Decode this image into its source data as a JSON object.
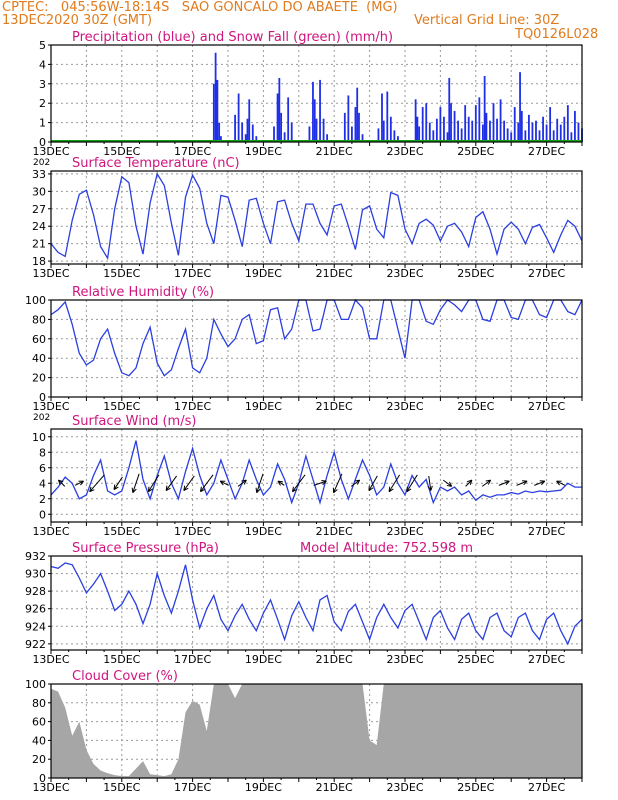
{
  "header": {
    "line1": "CPTEC:   045:56W-18:14S   SAO GONCALO DO ABAETE  (MG)",
    "date": "13DEC2020 30Z (GMT)",
    "grid_note": "Vertical Grid Line: 30Z",
    "code": "TQ0126L028"
  },
  "colors": {
    "header_text": "#e07b1e",
    "title_text": "#d0157e",
    "line": "#2b3fe0",
    "precip": "#1f2fe6",
    "snow": "#14a014",
    "cloud": "#a6a6a6",
    "barb": "#000000"
  },
  "x_tick_labels": [
    "13DEC",
    "15DEC",
    "17DEC",
    "19DEC",
    "21DEC",
    "23DEC",
    "25DEC",
    "27DEC"
  ],
  "stub_label": "202",
  "chart_data": [
    {
      "type": "bar",
      "title": "Precipitation (blue) and Snow Fall (green) (mm/h)",
      "ylim": [
        0,
        5
      ],
      "yticks": [
        0,
        1,
        2,
        3,
        4,
        5
      ],
      "series": [
        {
          "name": "Precipitation",
          "x": [
            4.6,
            4.65,
            4.7,
            4.75,
            4.8,
            5.2,
            5.3,
            5.4,
            5.5,
            5.55,
            5.6,
            5.7,
            5.8,
            6.3,
            6.4,
            6.45,
            6.5,
            6.6,
            6.7,
            6.8,
            7.3,
            7.4,
            7.45,
            7.5,
            7.6,
            7.7,
            7.8,
            8.3,
            8.4,
            8.5,
            8.6,
            8.65,
            8.7,
            8.8,
            9.25,
            9.35,
            9.4,
            9.5,
            9.6,
            9.7,
            9.8,
            10.3,
            10.35,
            10.4,
            10.5,
            10.6,
            10.7,
            10.8,
            10.9,
            11.0,
            11.1,
            11.2,
            11.25,
            11.3,
            11.4,
            11.5,
            11.6,
            11.7,
            11.8,
            11.9,
            12.0,
            12.1,
            12.2,
            12.25,
            12.3,
            12.4,
            12.5,
            12.6,
            12.7,
            12.8,
            12.9,
            13.0,
            13.1,
            13.2,
            13.25,
            13.3,
            13.4,
            13.5,
            13.6,
            13.7,
            13.8,
            13.9,
            14.0,
            14.1,
            14.2,
            14.3,
            14.4,
            14.5,
            14.6,
            14.7,
            14.8,
            14.9,
            15.0
          ],
          "values": [
            3.0,
            4.6,
            3.2,
            1.0,
            0.3,
            1.4,
            2.5,
            1.0,
            0.4,
            1.2,
            2.2,
            0.9,
            0.3,
            0.8,
            2.5,
            3.3,
            1.5,
            0.5,
            2.3,
            1.0,
            0.8,
            3.1,
            2.2,
            1.2,
            3.2,
            1.2,
            0.4,
            1.5,
            2.4,
            0.8,
            1.8,
            2.8,
            1.5,
            0.4,
            0.7,
            2.5,
            1.1,
            2.6,
            1.3,
            0.6,
            0.3,
            2.2,
            1.3,
            0.8,
            1.8,
            2.0,
            1.0,
            0.6,
            1.2,
            1.8,
            1.3,
            0.5,
            3.3,
            2.0,
            1.6,
            1.1,
            0.7,
            1.9,
            1.3,
            1.1,
            1.9,
            2.3,
            0.9,
            3.4,
            1.5,
            1.1,
            2.0,
            1.2,
            2.2,
            1.1,
            0.7,
            0.5,
            1.8,
            1.0,
            3.6,
            1.6,
            0.6,
            1.4,
            1.0,
            1.1,
            0.6,
            1.3,
            0.9,
            1.8,
            0.6,
            1.2,
            0.9,
            1.3,
            1.9,
            0.5,
            1.6,
            1.0,
            0.7
          ]
        },
        {
          "name": "Snow Fall",
          "x": [],
          "values": []
        }
      ]
    },
    {
      "type": "line",
      "title": "Surface Temperature (nC)",
      "ylim": [
        17.5,
        33.5
      ],
      "yticks": [
        18,
        21,
        24,
        27,
        30,
        33
      ],
      "x": [
        0,
        0.2,
        0.4,
        0.6,
        0.8,
        1.0,
        1.2,
        1.4,
        1.6,
        1.8,
        2.0,
        2.2,
        2.4,
        2.6,
        2.8,
        3.0,
        3.2,
        3.4,
        3.6,
        3.8,
        4.0,
        4.2,
        4.4,
        4.6,
        4.8,
        5.0,
        5.2,
        5.4,
        5.6,
        5.8,
        6.0,
        6.2,
        6.4,
        6.6,
        6.8,
        7.0,
        7.2,
        7.4,
        7.6,
        7.8,
        8.0,
        8.2,
        8.4,
        8.6,
        8.8,
        9.0,
        9.2,
        9.4,
        9.6,
        9.8,
        10.0,
        10.2,
        10.4,
        10.6,
        10.8,
        11.0,
        11.2,
        11.4,
        11.6,
        11.8,
        12.0,
        12.2,
        12.4,
        12.6,
        12.8,
        13.0,
        13.2,
        13.4,
        13.6,
        13.8,
        14.0,
        14.2,
        14.4,
        14.6,
        14.8,
        15.0
      ],
      "series": [
        {
          "values": [
            21.0,
            19.5,
            18.8,
            25.0,
            29.5,
            30.2,
            26.0,
            20.5,
            18.5,
            27.0,
            32.5,
            31.5,
            24.0,
            19.2,
            28.0,
            33.0,
            31.0,
            24.5,
            19.0,
            29.0,
            32.8,
            30.5,
            24.5,
            21.0,
            29.3,
            29.0,
            25.0,
            20.5,
            28.5,
            28.8,
            24.5,
            21.0,
            28.2,
            28.5,
            24.5,
            21.5,
            27.8,
            27.8,
            24.5,
            22.5,
            27.5,
            27.8,
            24.0,
            20.0,
            26.8,
            27.5,
            23.5,
            22.0,
            29.8,
            29.3,
            23.5,
            21.0,
            24.5,
            25.2,
            24.2,
            21.5,
            24.0,
            24.5,
            23.0,
            20.5,
            25.5,
            26.5,
            23.5,
            19.2,
            23.5,
            24.7,
            23.5,
            21.0,
            23.8,
            24.3,
            22.0,
            19.5,
            22.5,
            25.0,
            24.0,
            21.5
          ]
        }
      ]
    },
    {
      "type": "line",
      "title": "Relative Humidity (%)",
      "ylim": [
        0,
        100
      ],
      "yticks": [
        0,
        20,
        40,
        60,
        80,
        100
      ],
      "x": [
        0,
        0.2,
        0.4,
        0.6,
        0.8,
        1.0,
        1.2,
        1.4,
        1.6,
        1.8,
        2.0,
        2.2,
        2.4,
        2.6,
        2.8,
        3.0,
        3.2,
        3.4,
        3.6,
        3.8,
        4.0,
        4.2,
        4.4,
        4.6,
        4.8,
        5.0,
        5.2,
        5.4,
        5.6,
        5.8,
        6.0,
        6.2,
        6.4,
        6.6,
        6.8,
        7.0,
        7.2,
        7.4,
        7.6,
        7.8,
        8.0,
        8.2,
        8.4,
        8.6,
        8.8,
        9.0,
        9.2,
        9.4,
        9.6,
        9.8,
        10.0,
        10.2,
        10.4,
        10.6,
        10.8,
        11.0,
        11.2,
        11.4,
        11.6,
        11.8,
        12.0,
        12.2,
        12.4,
        12.6,
        12.8,
        13.0,
        13.2,
        13.4,
        13.6,
        13.8,
        14.0,
        14.2,
        14.4,
        14.6,
        14.8,
        15.0
      ],
      "series": [
        {
          "values": [
            85,
            90,
            98,
            75,
            45,
            33,
            38,
            60,
            70,
            45,
            25,
            22,
            30,
            55,
            72,
            35,
            22,
            28,
            50,
            70,
            30,
            25,
            40,
            80,
            65,
            52,
            60,
            80,
            85,
            55,
            58,
            90,
            92,
            60,
            70,
            100,
            100,
            68,
            70,
            100,
            100,
            80,
            80,
            100,
            92,
            60,
            60,
            100,
            100,
            70,
            40,
            100,
            100,
            78,
            75,
            90,
            100,
            95,
            88,
            100,
            100,
            80,
            78,
            100,
            100,
            82,
            80,
            100,
            100,
            85,
            82,
            100,
            100,
            88,
            85,
            100
          ]
        }
      ]
    },
    {
      "type": "line",
      "title": "Surface Wind (m/s)",
      "ylim": [
        -1,
        11
      ],
      "yticks": [
        0,
        2,
        4,
        6,
        8,
        10
      ],
      "x": [
        0,
        0.2,
        0.4,
        0.6,
        0.8,
        1.0,
        1.2,
        1.4,
        1.6,
        1.8,
        2.0,
        2.2,
        2.4,
        2.6,
        2.8,
        3.0,
        3.2,
        3.4,
        3.6,
        3.8,
        4.0,
        4.2,
        4.4,
        4.6,
        4.8,
        5.0,
        5.2,
        5.4,
        5.6,
        5.8,
        6.0,
        6.2,
        6.4,
        6.6,
        6.8,
        7.0,
        7.2,
        7.4,
        7.6,
        7.8,
        8.0,
        8.2,
        8.4,
        8.6,
        8.8,
        9.0,
        9.2,
        9.4,
        9.6,
        9.8,
        10.0,
        10.2,
        10.4,
        10.6,
        10.8,
        11.0,
        11.2,
        11.4,
        11.6,
        11.8,
        12.0,
        12.2,
        12.4,
        12.6,
        12.8,
        13.0,
        13.2,
        13.4,
        13.6,
        13.8,
        14.0,
        14.2,
        14.4,
        14.6,
        14.8,
        15.0
      ],
      "series": [
        {
          "values": [
            2.5,
            3.5,
            4.8,
            4.0,
            2.0,
            2.5,
            5.0,
            7.0,
            3.0,
            2.5,
            3.0,
            6.0,
            9.5,
            4.5,
            2.0,
            5.0,
            7.5,
            4.0,
            2.0,
            5.5,
            8.5,
            5.0,
            2.5,
            4.0,
            7.0,
            4.5,
            2.0,
            4.0,
            7.0,
            4.5,
            2.5,
            3.5,
            6.5,
            4.5,
            1.5,
            4.0,
            7.5,
            4.5,
            1.5,
            5.0,
            8.0,
            4.5,
            2.0,
            4.5,
            7.0,
            5.0,
            2.5,
            3.5,
            6.5,
            4.0,
            2.5,
            5.0,
            3.5,
            4.5,
            1.5,
            3.5,
            3.0,
            3.5,
            2.5,
            3.0,
            1.8,
            2.5,
            2.2,
            2.5,
            2.5,
            2.8,
            2.6,
            3.0,
            2.8,
            3.0,
            2.9,
            3.0,
            3.1,
            4.0,
            3.5,
            3.5
          ]
        }
      ],
      "barbs": {
        "x": [
          0.3,
          0.8,
          1.3,
          1.9,
          2.4,
          2.9,
          3.4,
          3.9,
          4.4,
          4.9,
          5.4,
          5.9,
          6.5,
          7.0,
          7.6,
          8.1,
          8.6,
          9.1,
          9.7,
          10.2,
          10.7,
          11.2,
          11.8,
          12.3,
          12.8,
          13.3,
          13.8,
          14.4
        ],
        "u": [
          -1.5,
          2.0,
          -3.5,
          -2.0,
          -1.5,
          -2.5,
          -2.5,
          -2.5,
          -3.0,
          -2.0,
          2.0,
          -1.5,
          -1.5,
          -3.0,
          3.0,
          -2.0,
          2.0,
          -2.0,
          -2.5,
          -2.5,
          0.5,
          2.0,
          1.5,
          2.0,
          2.5,
          2.5,
          2.5,
          -2.0
        ],
        "v": [
          1.5,
          1.0,
          -4.0,
          -3.0,
          -4.5,
          -4.0,
          -3.5,
          -3.5,
          -4.0,
          1.0,
          1.5,
          -4.5,
          1.0,
          -4.0,
          1.0,
          -4.5,
          1.5,
          -3.5,
          -4.0,
          -4.0,
          -3.5,
          -1.5,
          1.5,
          1.5,
          1.0,
          1.0,
          1.0,
          1.0
        ]
      }
    },
    {
      "type": "line",
      "title": "Surface Pressure (hPa)",
      "annotation": "Model Altitude: 752.598 m",
      "ylim": [
        921.3,
        932
      ],
      "yticks": [
        922,
        924,
        926,
        928,
        930,
        932
      ],
      "x": [
        0,
        0.2,
        0.4,
        0.6,
        0.8,
        1.0,
        1.2,
        1.4,
        1.6,
        1.8,
        2.0,
        2.2,
        2.4,
        2.6,
        2.8,
        3.0,
        3.2,
        3.4,
        3.6,
        3.8,
        4.0,
        4.2,
        4.4,
        4.6,
        4.8,
        5.0,
        5.2,
        5.4,
        5.6,
        5.8,
        6.0,
        6.2,
        6.4,
        6.6,
        6.8,
        7.0,
        7.2,
        7.4,
        7.6,
        7.8,
        8.0,
        8.2,
        8.4,
        8.6,
        8.8,
        9.0,
        9.2,
        9.4,
        9.6,
        9.8,
        10.0,
        10.2,
        10.4,
        10.6,
        10.8,
        11.0,
        11.2,
        11.4,
        11.6,
        11.8,
        12.0,
        12.2,
        12.4,
        12.6,
        12.8,
        13.0,
        13.2,
        13.4,
        13.6,
        13.8,
        14.0,
        14.2,
        14.4,
        14.6,
        14.8,
        15.0
      ],
      "series": [
        {
          "values": [
            930.8,
            930.6,
            931.2,
            931.0,
            929.5,
            927.8,
            928.8,
            930.0,
            928.0,
            925.8,
            926.5,
            928.0,
            926.5,
            924.3,
            926.5,
            930.0,
            927.5,
            925.5,
            928.0,
            931.0,
            927.0,
            923.8,
            926.0,
            927.5,
            924.8,
            923.5,
            925.2,
            926.5,
            924.8,
            923.5,
            925.5,
            927.0,
            924.8,
            922.5,
            925.2,
            926.8,
            925.0,
            923.5,
            927.0,
            927.5,
            924.5,
            923.5,
            925.7,
            926.5,
            924.5,
            922.5,
            925.0,
            926.5,
            925.0,
            923.8,
            925.8,
            926.5,
            924.5,
            922.5,
            925.0,
            925.8,
            923.8,
            922.5,
            924.8,
            925.5,
            923.5,
            922.5,
            925.0,
            925.5,
            923.5,
            922.8,
            925.0,
            925.5,
            923.5,
            922.5,
            924.8,
            925.5,
            923.5,
            922.0,
            924.0,
            924.8
          ]
        }
      ]
    },
    {
      "type": "area",
      "title": "Cloud Cover (%)",
      "ylim": [
        0,
        100
      ],
      "yticks": [
        0,
        20,
        40,
        60,
        80,
        100
      ],
      "x": [
        0,
        0.2,
        0.4,
        0.6,
        0.8,
        1.0,
        1.2,
        1.4,
        1.6,
        1.8,
        2.0,
        2.2,
        2.4,
        2.6,
        2.8,
        3.0,
        3.2,
        3.4,
        3.6,
        3.8,
        4.0,
        4.2,
        4.4,
        4.6,
        4.8,
        5.0,
        5.2,
        5.4,
        5.6,
        5.8,
        6.0,
        6.2,
        6.4,
        6.6,
        6.8,
        7.0,
        7.2,
        7.4,
        7.6,
        7.8,
        8.0,
        8.2,
        8.4,
        8.6,
        8.8,
        9.0,
        9.2,
        9.4,
        9.6,
        9.8,
        10.0,
        10.2,
        10.4,
        10.6,
        10.8,
        11.0,
        11.2,
        11.4,
        11.6,
        11.8,
        12.0,
        12.2,
        12.4,
        12.6,
        12.8,
        13.0,
        13.2,
        13.4,
        13.6,
        13.8,
        14.0,
        14.2,
        14.4,
        14.6,
        14.8,
        15.0
      ],
      "series": [
        {
          "values": [
            95,
            92,
            75,
            45,
            60,
            30,
            15,
            8,
            5,
            3,
            2,
            2,
            10,
            18,
            4,
            3,
            2,
            4,
            20,
            70,
            82,
            78,
            50,
            100,
            100,
            100,
            85,
            100,
            100,
            100,
            100,
            100,
            100,
            100,
            100,
            100,
            100,
            100,
            100,
            100,
            100,
            100,
            100,
            100,
            100,
            40,
            35,
            100,
            100,
            100,
            100,
            100,
            100,
            100,
            100,
            100,
            100,
            100,
            100,
            100,
            100,
            100,
            100,
            100,
            100,
            100,
            100,
            100,
            100,
            100,
            100,
            100,
            100,
            100,
            100,
            100
          ]
        }
      ]
    }
  ]
}
